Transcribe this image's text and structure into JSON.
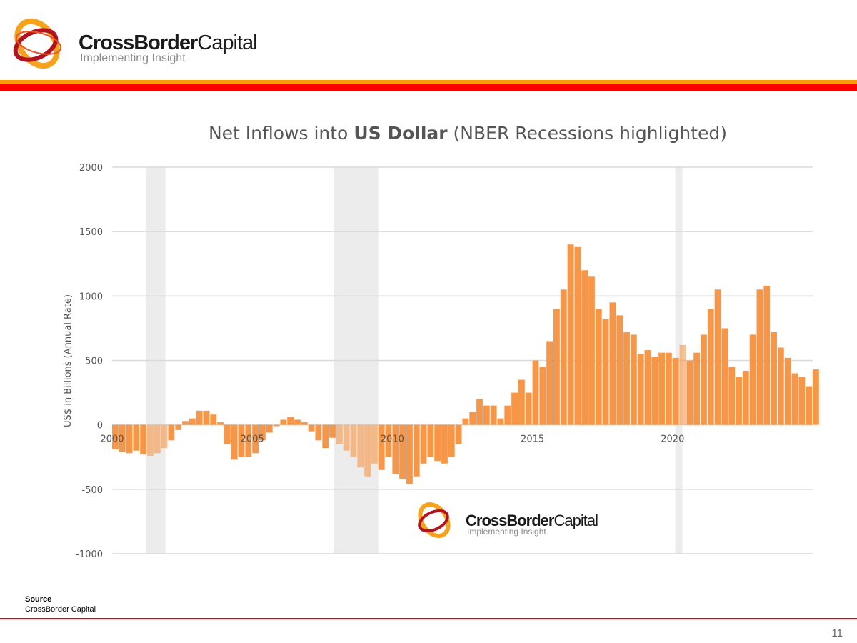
{
  "header": {
    "brand_bold": "CrossBorder",
    "brand_light": "Capital",
    "tagline": "Implementing Insight"
  },
  "colors": {
    "bar": "#f79646",
    "recession": "#ececec",
    "accent_orange": "#ff9a00",
    "accent_red": "#ff0000"
  },
  "chart_data": {
    "type": "bar",
    "title_pre": "Net Inflows into ",
    "title_bold": "US Dollar",
    "title_post": " (NBER Recessions highlighted)",
    "ylabel": "US$ in Billions (Annual Rate)",
    "xlabel": "",
    "ylim": [
      -1000,
      2000
    ],
    "yticks": [
      "2000",
      "1500",
      "1000",
      "500",
      "0",
      "-500",
      "-1000"
    ],
    "xticks": [
      "2000",
      "2005",
      "2010",
      "2015",
      "2020"
    ],
    "xlim": [
      2000,
      2025
    ],
    "grid": true,
    "frequency": "quarterly",
    "start": 2000,
    "values": [
      -190,
      -210,
      -220,
      -200,
      -230,
      -240,
      -220,
      -180,
      -120,
      -40,
      30,
      50,
      110,
      110,
      80,
      20,
      -150,
      -270,
      -250,
      -250,
      -220,
      -120,
      -60,
      -10,
      40,
      60,
      40,
      20,
      -50,
      -120,
      -180,
      -100,
      -150,
      -200,
      -250,
      -330,
      -400,
      -300,
      -350,
      -250,
      -380,
      -420,
      -460,
      -400,
      -300,
      -250,
      -280,
      -300,
      -250,
      -150,
      50,
      100,
      200,
      150,
      150,
      50,
      150,
      250,
      350,
      250,
      500,
      450,
      650,
      900,
      1050,
      1400,
      1380,
      1200,
      1150,
      900,
      820,
      950,
      850,
      720,
      700,
      550,
      580,
      530,
      560,
      560,
      520,
      620,
      500,
      560,
      700,
      900,
      1050,
      750,
      450,
      370,
      420,
      700,
      1050,
      1080,
      720,
      600,
      520,
      400,
      370,
      300,
      430
    ],
    "recessions": [
      [
        2001.2,
        2001.9
      ],
      [
        2007.9,
        2009.5
      ],
      [
        2020.1,
        2020.35
      ]
    ]
  },
  "watermark": {
    "brand_bold": "CrossBorder",
    "brand_light": "Capital",
    "tagline": "Implementing Insight"
  },
  "footer": {
    "source_label": "Source",
    "source_text": "CrossBorder Capital",
    "page": "11"
  }
}
